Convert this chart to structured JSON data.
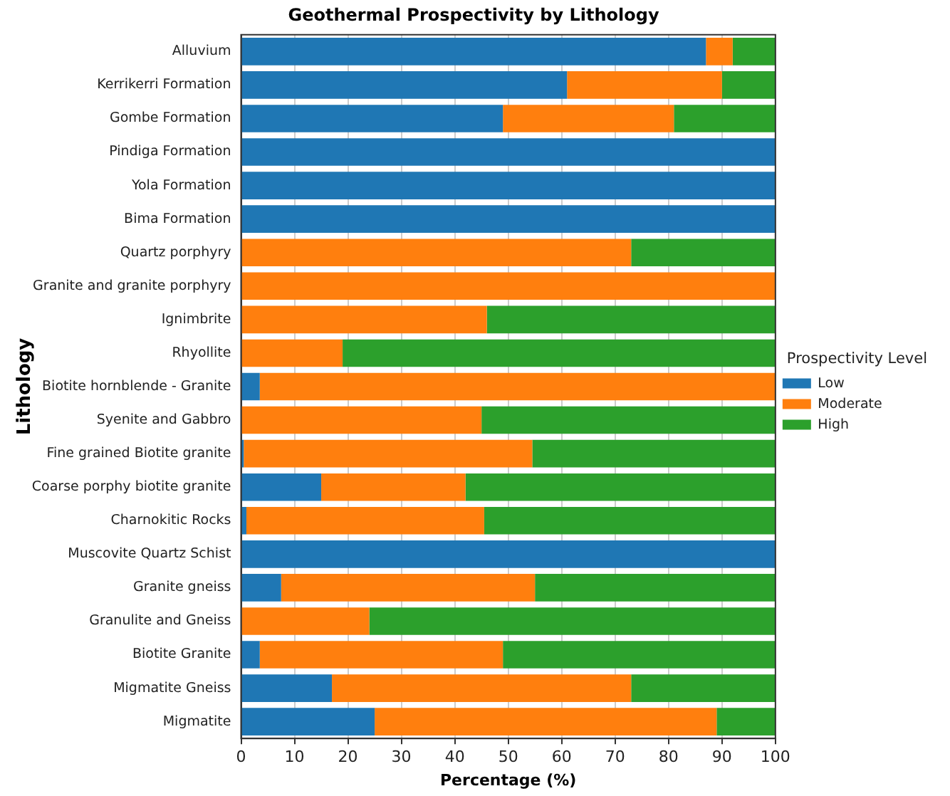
{
  "chart_data": {
    "type": "bar",
    "orientation": "horizontal",
    "stacked": true,
    "title": "Geothermal Prospectivity by Lithology",
    "xlabel": "Percentage (%)",
    "ylabel": "Lithology",
    "legend_title": "Prospectivity Level",
    "legend": "right",
    "grid": "x",
    "categories": [
      "Alluvium",
      "Kerrikerri Formation",
      "Gombe Formation",
      "Pindiga Formation",
      "Yola Formation",
      "Bima Formation",
      "Quartz porphyry",
      "Granite and granite porphyry",
      "Ignimbrite",
      "Rhyollite",
      "Biotite hornblende - Granite",
      "Syenite and Gabbro",
      "Fine grained Biotite granite",
      "Coarse porphy biotite granite",
      "Charnokitic Rocks",
      "Muscovite Quartz Schist",
      "Granite gneiss",
      "Granulite and Gneiss",
      "Biotite Granite",
      "Migmatite Gneiss",
      "Migmatite"
    ],
    "xlim": [
      0,
      100
    ],
    "xticks": [
      0,
      10,
      20,
      30,
      40,
      50,
      60,
      70,
      80,
      90,
      100
    ],
    "series": [
      {
        "name": "Low",
        "color": "#1f77b4",
        "values": [
          87,
          61,
          49,
          100,
          100,
          100,
          0,
          0,
          0,
          0,
          3.5,
          0,
          0.5,
          15,
          1,
          100,
          7.5,
          0,
          3.5,
          17,
          25
        ]
      },
      {
        "name": "Moderate",
        "color": "#ff7f0e",
        "values": [
          5,
          29,
          32,
          0,
          0,
          0,
          73,
          100,
          46,
          19,
          96.5,
          45,
          54,
          27,
          44.5,
          0,
          47.5,
          24,
          45.5,
          56,
          64
        ]
      },
      {
        "name": "High",
        "color": "#2ca02c",
        "values": [
          8,
          10,
          19,
          0,
          0,
          0,
          27,
          0,
          54,
          81,
          0,
          55,
          45.5,
          58,
          54.5,
          0,
          45,
          76,
          51,
          27,
          11
        ]
      }
    ]
  }
}
